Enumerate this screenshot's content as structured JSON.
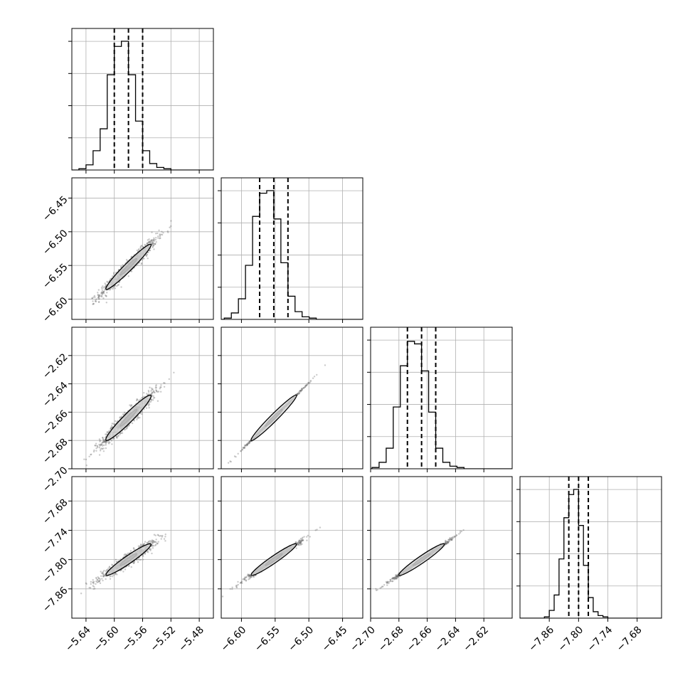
{
  "chart_data": {
    "type": "corner",
    "parameters": [
      {
        "name": "",
        "range": [
          -5.66,
          -5.46
        ],
        "ticks": [
          "−5.64",
          "−5.60",
          "−5.56",
          "−5.52",
          "−5.48"
        ],
        "tick_values": [
          -5.64,
          -5.6,
          -5.56,
          -5.52,
          -5.48
        ],
        "median": -5.58,
        "q16": -5.6,
        "q84": -5.56,
        "std": 0.02
      },
      {
        "name": "",
        "range": [
          -6.63,
          -6.42
        ],
        "ticks": [
          "−6.60",
          "−6.55",
          "−6.50",
          "−6.45"
        ],
        "tick_values": [
          -6.6,
          -6.55,
          -6.5,
          -6.45
        ],
        "median": -6.552,
        "q16": -6.573,
        "q84": -6.531,
        "std": 0.021
      },
      {
        "name": "",
        "range": [
          -2.7,
          -2.6
        ],
        "ticks": [
          "−2.70",
          "−2.68",
          "−2.66",
          "−2.64",
          "−2.62"
        ],
        "tick_values": [
          -2.7,
          -2.68,
          -2.66,
          -2.64,
          -2.62
        ],
        "median": -2.664,
        "q16": -2.674,
        "q84": -2.654,
        "std": 0.01
      },
      {
        "name": "",
        "range": [
          -7.92,
          -7.63
        ],
        "ticks": [
          "−7.86",
          "−7.80",
          "−7.74",
          "−7.68"
        ],
        "tick_values": [
          -7.86,
          -7.8,
          -7.74,
          -7.68
        ],
        "median": -7.8,
        "q16": -7.82,
        "q84": -7.78,
        "std": 0.02
      }
    ],
    "left_ticks": [
      null,
      {
        "labels": [
          "−6.60",
          "−6.55",
          "−6.50",
          "−6.45"
        ],
        "values": [
          -6.6,
          -6.55,
          -6.5,
          -6.45
        ]
      },
      {
        "labels": [
          "−2.70",
          "−2.68",
          "−2.66",
          "−2.64",
          "−2.62"
        ],
        "values": [
          -2.7,
          -2.68,
          -2.66,
          -2.64,
          -2.62
        ]
      },
      {
        "labels": [
          "−7.86",
          "−7.80",
          "−7.74",
          "−7.68"
        ],
        "values": [
          -7.86,
          -7.8,
          -7.74,
          -7.68
        ]
      }
    ],
    "histograms": [
      [
        0.01,
        0.04,
        0.15,
        0.32,
        0.74,
        0.96,
        1.0,
        0.74,
        0.38,
        0.15,
        0.05,
        0.02,
        0.01,
        0.0
      ],
      [
        0.01,
        0.05,
        0.16,
        0.42,
        0.8,
        0.98,
        1.0,
        0.78,
        0.44,
        0.18,
        0.06,
        0.02,
        0.01,
        0.0
      ],
      [
        0.01,
        0.05,
        0.16,
        0.48,
        0.8,
        0.99,
        0.97,
        0.76,
        0.44,
        0.16,
        0.05,
        0.02,
        0.01,
        0.0
      ],
      [
        0.01,
        0.06,
        0.18,
        0.46,
        0.78,
        0.96,
        1.0,
        0.72,
        0.41,
        0.16,
        0.05,
        0.02,
        0.01,
        0.0
      ]
    ],
    "correlations": {
      "1-0": 0.97,
      "2-0": 0.96,
      "2-1": 0.999,
      "3-0": 0.96,
      "3-1": 0.99,
      "3-2": 0.995
    },
    "colors": {
      "points": "#666666",
      "contour": "#000000",
      "grid": "#b0b0b0"
    },
    "grid": true,
    "legend": "none"
  }
}
